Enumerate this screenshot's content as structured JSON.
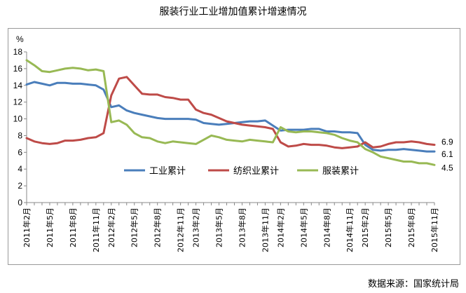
{
  "title": "服装行业工业增加值累计增速情况",
  "source": "数据来源：国家统计局",
  "chart_data": {
    "type": "line",
    "title": "服装行业工业增加值累计增速情况",
    "ylabel": "%",
    "ylim": [
      0,
      18
    ],
    "yticks": [
      0,
      2,
      4,
      6,
      8,
      10,
      12,
      14,
      16,
      18
    ],
    "grid": false,
    "legend_position": "lower-center",
    "x": [
      "2011年2月",
      "2011年3月",
      "2011年4月",
      "2011年5月",
      "2011年6月",
      "2011年7月",
      "2011年8月",
      "2011年9月",
      "2011年10月",
      "2011年11月",
      "2011年12月",
      "2012年2月",
      "2012年3月",
      "2012年4月",
      "2012年5月",
      "2012年6月",
      "2012年7月",
      "2012年8月",
      "2012年9月",
      "2012年10月",
      "2012年11月",
      "2012年12月",
      "2013年2月",
      "2013年3月",
      "2013年4月",
      "2013年5月",
      "2013年6月",
      "2013年7月",
      "2013年8月",
      "2013年9月",
      "2013年10月",
      "2013年11月",
      "2013年12月",
      "2014年2月",
      "2014年3月",
      "2014年4月",
      "2014年5月",
      "2014年6月",
      "2014年7月",
      "2014年8月",
      "2014年9月",
      "2014年10月",
      "2014年11月",
      "2014年12月",
      "2015年2月",
      "2015年3月",
      "2015年4月",
      "2015年5月",
      "2015年6月",
      "2015年7月",
      "2015年8月",
      "2015年9月",
      "2015年10月",
      "2015年11月"
    ],
    "xtick_labels": [
      "2011年2月",
      "2011年5月",
      "2011年8月",
      "2011年11月",
      "2012年2月",
      "2012年5月",
      "2012年8月",
      "2012年11月",
      "2013年2月",
      "2013年5月",
      "2013年8月",
      "2013年11月",
      "2014年2月",
      "2014年5月",
      "2014年8月",
      "2014年11月",
      "2015年2月",
      "2015年5月",
      "2015年8月",
      "2015年11月"
    ],
    "series": [
      {
        "name": "工业累计",
        "color": "#4a7ebb",
        "end_label": "6.1",
        "values": [
          14.1,
          14.4,
          14.2,
          14.0,
          14.3,
          14.3,
          14.2,
          14.2,
          14.1,
          14.0,
          13.5,
          11.4,
          11.6,
          11.0,
          10.7,
          10.5,
          10.3,
          10.1,
          10.0,
          10.0,
          10.0,
          10.0,
          9.9,
          9.5,
          9.4,
          9.3,
          9.4,
          9.5,
          9.6,
          9.7,
          9.7,
          9.8,
          9.2,
          8.6,
          8.7,
          8.7,
          8.7,
          8.8,
          8.8,
          8.5,
          8.5,
          8.4,
          8.4,
          8.3,
          6.9,
          6.3,
          6.2,
          6.3,
          6.3,
          6.4,
          6.3,
          6.2,
          6.1,
          6.1
        ]
      },
      {
        "name": "纺织业累计",
        "color": "#be4b48",
        "end_label": "6.9",
        "values": [
          7.7,
          7.3,
          7.1,
          7.0,
          7.1,
          7.4,
          7.4,
          7.5,
          7.7,
          7.8,
          8.3,
          12.8,
          14.8,
          15.0,
          14.0,
          13.0,
          12.9,
          12.9,
          12.6,
          12.5,
          12.3,
          12.3,
          11.1,
          10.7,
          10.5,
          10.1,
          9.7,
          9.5,
          9.3,
          9.2,
          9.1,
          9.0,
          8.8,
          7.2,
          6.7,
          6.8,
          7.0,
          6.9,
          6.9,
          6.8,
          6.6,
          6.5,
          6.6,
          6.7,
          7.2,
          6.6,
          6.7,
          7.0,
          7.2,
          7.2,
          7.3,
          7.2,
          7.0,
          6.9
        ]
      },
      {
        "name": "服装累计",
        "color": "#98b954",
        "end_label": "4.5",
        "values": [
          17.0,
          16.4,
          15.7,
          15.6,
          15.8,
          16.0,
          16.1,
          16.0,
          15.8,
          15.9,
          15.7,
          9.6,
          9.8,
          9.3,
          8.3,
          7.8,
          7.7,
          7.3,
          7.1,
          7.3,
          7.2,
          7.1,
          7.0,
          7.5,
          8.0,
          7.8,
          7.5,
          7.4,
          7.3,
          7.5,
          7.4,
          7.3,
          7.2,
          9.0,
          8.5,
          8.4,
          8.5,
          8.5,
          8.4,
          8.3,
          8.1,
          7.7,
          7.4,
          7.2,
          6.4,
          6.0,
          5.5,
          5.3,
          5.1,
          4.9,
          4.9,
          4.7,
          4.7,
          4.5
        ]
      }
    ]
  }
}
